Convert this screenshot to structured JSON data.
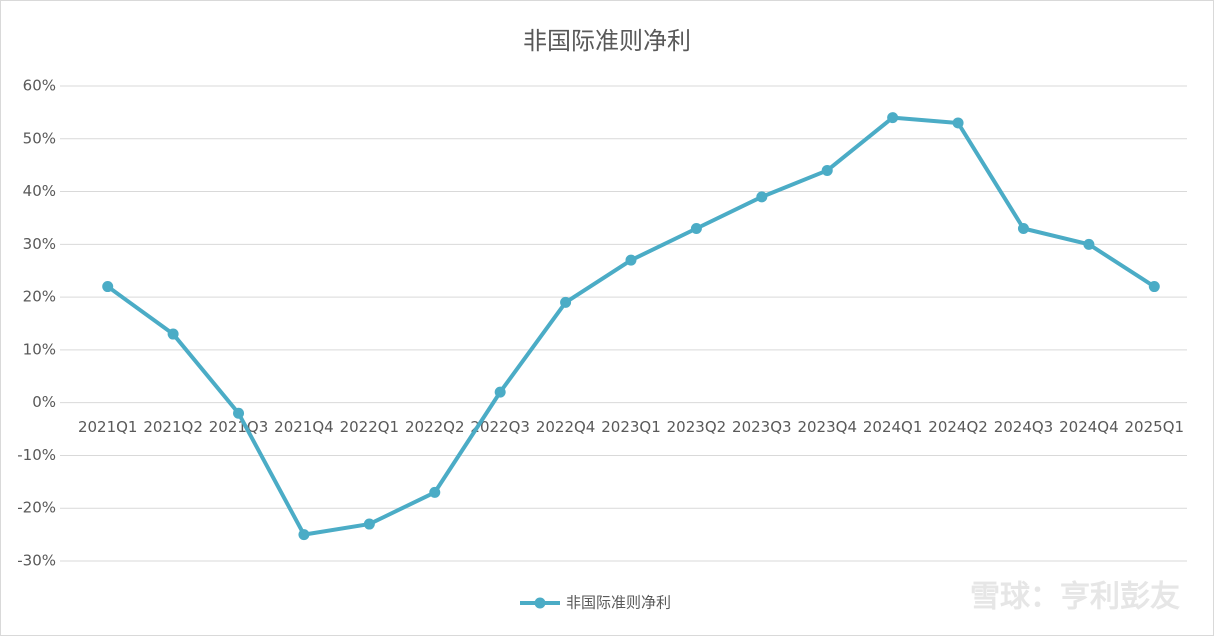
{
  "chart_data": {
    "type": "line",
    "title": "非国际准则净利",
    "categories": [
      "2021Q1",
      "2021Q2",
      "2021Q3",
      "2021Q4",
      "2022Q1",
      "2022Q2",
      "2022Q3",
      "2022Q4",
      "2023Q1",
      "2023Q2",
      "2023Q3",
      "2023Q4",
      "2024Q1",
      "2024Q2",
      "2024Q3",
      "2024Q4",
      "2025Q1"
    ],
    "series": [
      {
        "name": "非国际准则净利",
        "color": "#4bacc6",
        "values": [
          22,
          13,
          -2,
          -25,
          -23,
          -17,
          2,
          19,
          27,
          33,
          39,
          44,
          54,
          53,
          33,
          30,
          22
        ]
      }
    ],
    "ylim": [
      -30,
      60
    ],
    "yticks": [
      {
        "value": -30,
        "label": "-30%"
      },
      {
        "value": -20,
        "label": "-20%"
      },
      {
        "value": -10,
        "label": "-10%"
      },
      {
        "value": 0,
        "label": "0%"
      },
      {
        "value": 10,
        "label": "10%"
      },
      {
        "value": 20,
        "label": "20%"
      },
      {
        "value": 30,
        "label": "30%"
      },
      {
        "value": 40,
        "label": "40%"
      },
      {
        "value": 50,
        "label": "50%"
      },
      {
        "value": 60,
        "label": "60%"
      }
    ],
    "grid": true,
    "legend": "bottom",
    "watermark": "雪球：亨利彭友"
  }
}
